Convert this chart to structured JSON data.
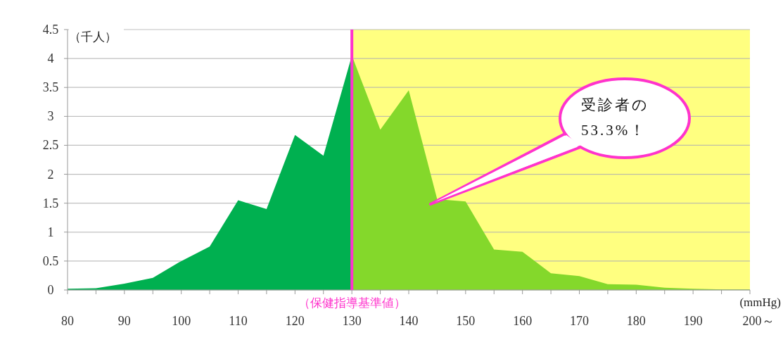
{
  "chart_data": {
    "type": "area",
    "xlabel": "(mmHg)",
    "ylabel": "（千人）",
    "series": [
      {
        "color": "#00b050",
        "x": [
          80,
          85,
          90,
          95,
          100,
          105,
          110,
          115,
          120,
          125,
          130
        ],
        "values": [
          0.02,
          0.03,
          0.11,
          0.21,
          0.5,
          0.75,
          1.55,
          1.4,
          2.68,
          2.32,
          4.05
        ]
      },
      {
        "color": "#84d82b",
        "x": [
          130,
          135,
          140,
          145,
          150,
          155,
          160,
          165,
          170,
          175,
          180,
          185,
          190,
          195,
          200
        ],
        "values": [
          4.05,
          2.77,
          3.45,
          1.57,
          1.53,
          0.7,
          0.66,
          0.29,
          0.24,
          0.1,
          0.09,
          0.04,
          0.02,
          0.01,
          0.01
        ]
      }
    ],
    "xlim": [
      80,
      200
    ],
    "xticks": [
      80,
      {
        "value": 85,
        "label": null
      },
      90,
      {
        "value": 95,
        "label": null
      },
      100,
      {
        "value": 105,
        "label": null
      },
      110,
      {
        "value": 115,
        "label": null
      },
      120,
      {
        "value": 125,
        "label": null
      },
      130,
      {
        "value": 135,
        "label": null
      },
      140,
      {
        "value": 145,
        "label": null
      },
      150,
      {
        "value": 155,
        "label": null
      },
      160,
      {
        "value": 165,
        "label": null
      },
      170,
      {
        "value": 175,
        "label": null
      },
      180,
      {
        "value": 185,
        "label": null
      },
      190,
      {
        "value": 195,
        "label": null
      },
      {
        "value": 200,
        "label": "200～"
      }
    ],
    "ylim": [
      0,
      4.5
    ],
    "yticks": [
      0,
      0.5,
      1,
      1.5,
      2,
      2.5,
      3,
      3.5,
      4,
      4.5
    ],
    "grid": "y",
    "bands": [
      {
        "axis": "x",
        "from": 130,
        "to": 200,
        "color": "#ffff80"
      }
    ],
    "ref_lines": [
      {
        "axis": "x",
        "value": 130,
        "label": "（保健指導基準値）",
        "color": "#ff33cc"
      }
    ],
    "annotations": [
      "受診者の\n53.3%！"
    ]
  }
}
